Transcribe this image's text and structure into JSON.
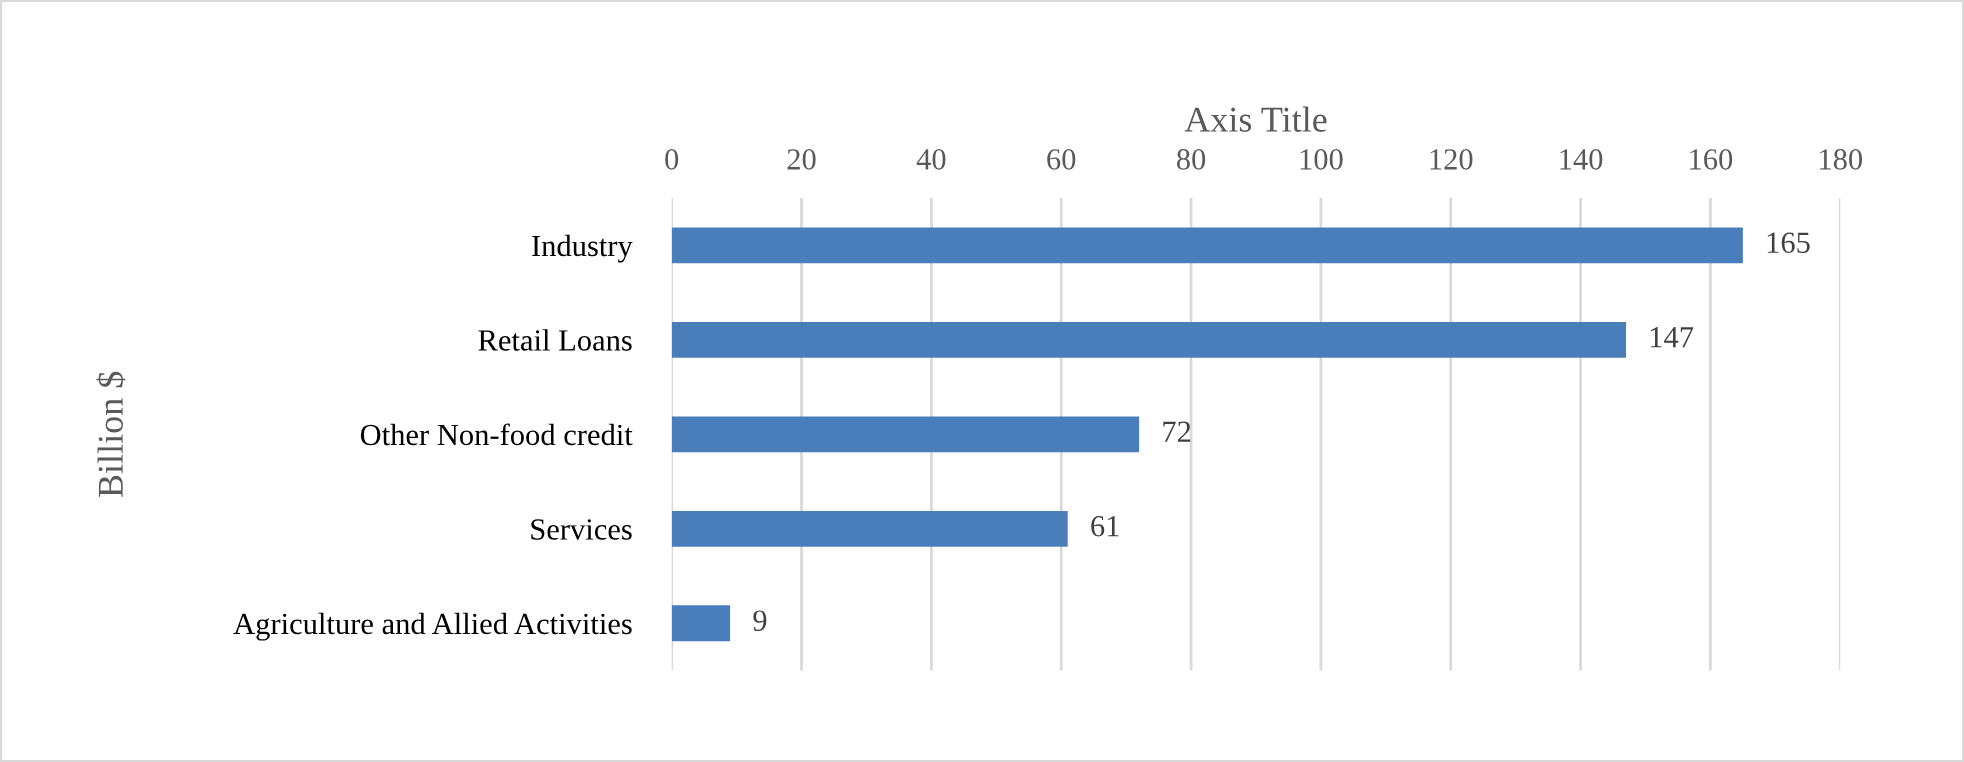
{
  "chart_data": {
    "type": "bar",
    "orientation": "horizontal",
    "categories": [
      "Industry",
      "Retail Loans",
      "Other Non-food credit",
      "Services",
      "Agriculture and Allied Activities"
    ],
    "values": [
      165,
      147,
      72,
      61,
      9
    ],
    "color": "#4a7ebb",
    "xlabel": "Axis Title",
    "ylabel": "Billion $",
    "xlim": [
      0,
      180
    ],
    "xticks": [
      0,
      20,
      40,
      60,
      80,
      100,
      120,
      140,
      160,
      180
    ],
    "grid": "x",
    "data_labels": true
  }
}
